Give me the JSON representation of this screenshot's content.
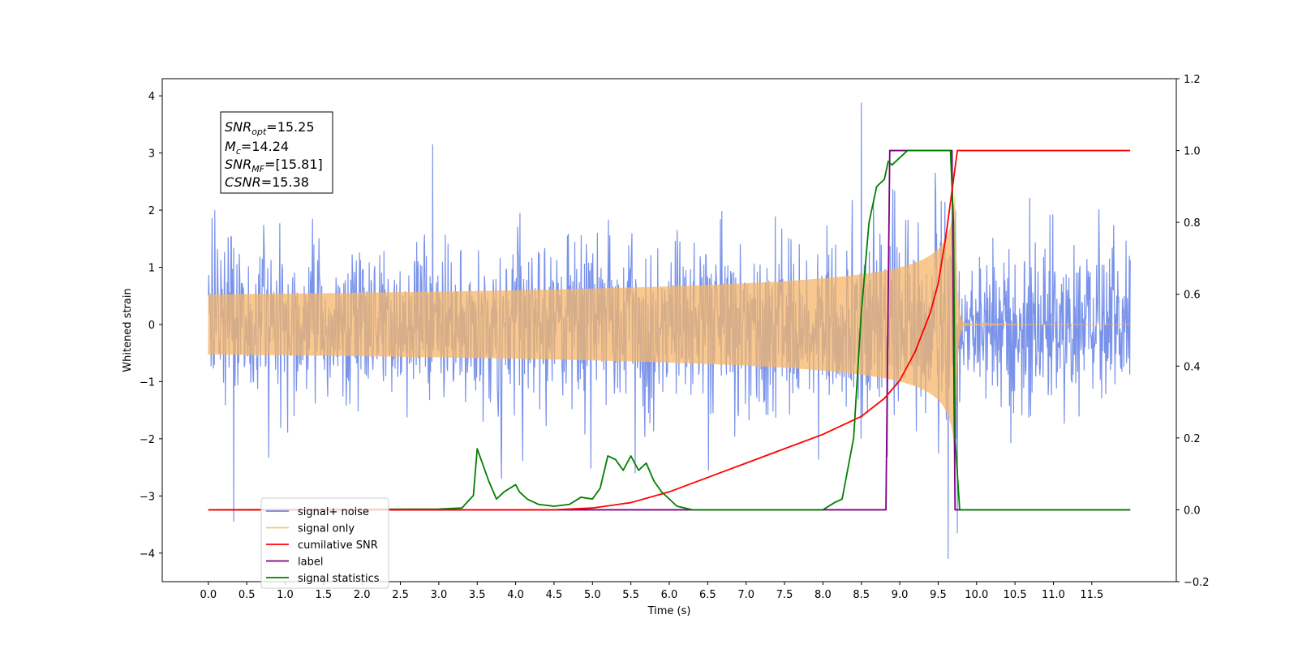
{
  "chart_data": {
    "type": "line",
    "xlabel": "Time (s)",
    "ylabel": "Whitened strain",
    "xlim": [
      -0.6,
      12.6
    ],
    "ylim": [
      -4.5,
      4.3
    ],
    "y2lim": [
      -0.2,
      1.2
    ],
    "x_ticks": [
      "0.0",
      "0.5",
      "1.0",
      "1.5",
      "2.0",
      "2.5",
      "3.0",
      "3.5",
      "4.0",
      "4.5",
      "5.0",
      "5.5",
      "6.0",
      "6.5",
      "7.0",
      "7.5",
      "8.0",
      "8.5",
      "9.0",
      "9.5",
      "10.0",
      "10.5",
      "11.0",
      "11.5"
    ],
    "y_ticks": [
      "4",
      "3",
      "2",
      "1",
      "0",
      "−1",
      "−2",
      "−3",
      "−4"
    ],
    "y2_ticks": [
      "1.2",
      "1.0",
      "0.8",
      "0.6",
      "0.4",
      "0.2",
      "0.0",
      "−0.2"
    ],
    "grid": false,
    "legend_position": "lower-left",
    "annotation": {
      "snr_opt": "=15.25",
      "mc": "=14.24",
      "snr_mf": "=[15.81]",
      "csnr": "=15.38"
    },
    "series": [
      {
        "name": "signal+ noise",
        "color": "#6c87e8",
        "axis": "left",
        "noise_sigma": 0.75,
        "x_range": [
          0.0,
          12.0
        ],
        "notable_peaks": [
          [
            0.33,
            -3.45
          ],
          [
            2.92,
            3.15
          ],
          [
            8.5,
            3.88
          ],
          [
            9.63,
            -4.1
          ],
          [
            9.75,
            -3.65
          ]
        ]
      },
      {
        "name": "signal only",
        "color": "#f5b66a",
        "axis": "left",
        "x_range": [
          0.0,
          12.0
        ],
        "chirp_end": 9.72,
        "peak_amplitude": 2.35
      },
      {
        "name": "cumilative SNR",
        "color": "#ff0000",
        "axis": "right",
        "x": [
          0.0,
          4.5,
          5.0,
          5.5,
          6.0,
          6.5,
          7.0,
          7.5,
          8.0,
          8.5,
          8.8,
          9.0,
          9.2,
          9.4,
          9.5,
          9.6,
          9.7,
          9.75,
          12.0
        ],
        "values": [
          0.0,
          0.0,
          0.005,
          0.02,
          0.05,
          0.09,
          0.13,
          0.17,
          0.21,
          0.26,
          0.31,
          0.36,
          0.44,
          0.55,
          0.63,
          0.76,
          0.92,
          1.0,
          1.0
        ]
      },
      {
        "name": "label",
        "color": "#800080",
        "axis": "right",
        "x": [
          0.0,
          8.82,
          8.87,
          9.68,
          9.72,
          12.0
        ],
        "values": [
          0.0,
          0.0,
          1.0,
          1.0,
          0.0,
          0.0
        ]
      },
      {
        "name": "signal statistics",
        "color": "#008000",
        "axis": "right",
        "x": [
          0.0,
          3.0,
          3.3,
          3.45,
          3.5,
          3.55,
          3.65,
          3.75,
          3.85,
          4.0,
          4.05,
          4.15,
          4.3,
          4.5,
          4.7,
          4.85,
          5.0,
          5.1,
          5.2,
          5.3,
          5.4,
          5.5,
          5.6,
          5.7,
          5.8,
          5.9,
          6.0,
          6.1,
          6.3,
          8.0,
          8.15,
          8.25,
          8.4,
          8.5,
          8.6,
          8.7,
          8.8,
          8.85,
          8.9,
          9.0,
          9.1,
          9.2,
          9.4,
          9.66,
          9.7,
          9.72,
          9.78,
          12.0
        ],
        "values": [
          0.0,
          0.002,
          0.005,
          0.04,
          0.17,
          0.14,
          0.08,
          0.03,
          0.05,
          0.07,
          0.05,
          0.03,
          0.015,
          0.01,
          0.015,
          0.035,
          0.03,
          0.06,
          0.15,
          0.14,
          0.11,
          0.15,
          0.11,
          0.13,
          0.08,
          0.05,
          0.03,
          0.01,
          0.0,
          0.0,
          0.02,
          0.03,
          0.2,
          0.55,
          0.8,
          0.9,
          0.92,
          0.97,
          0.96,
          0.98,
          1.0,
          1.0,
          1.0,
          1.0,
          0.8,
          0.2,
          0.0,
          0.0
        ]
      }
    ]
  }
}
